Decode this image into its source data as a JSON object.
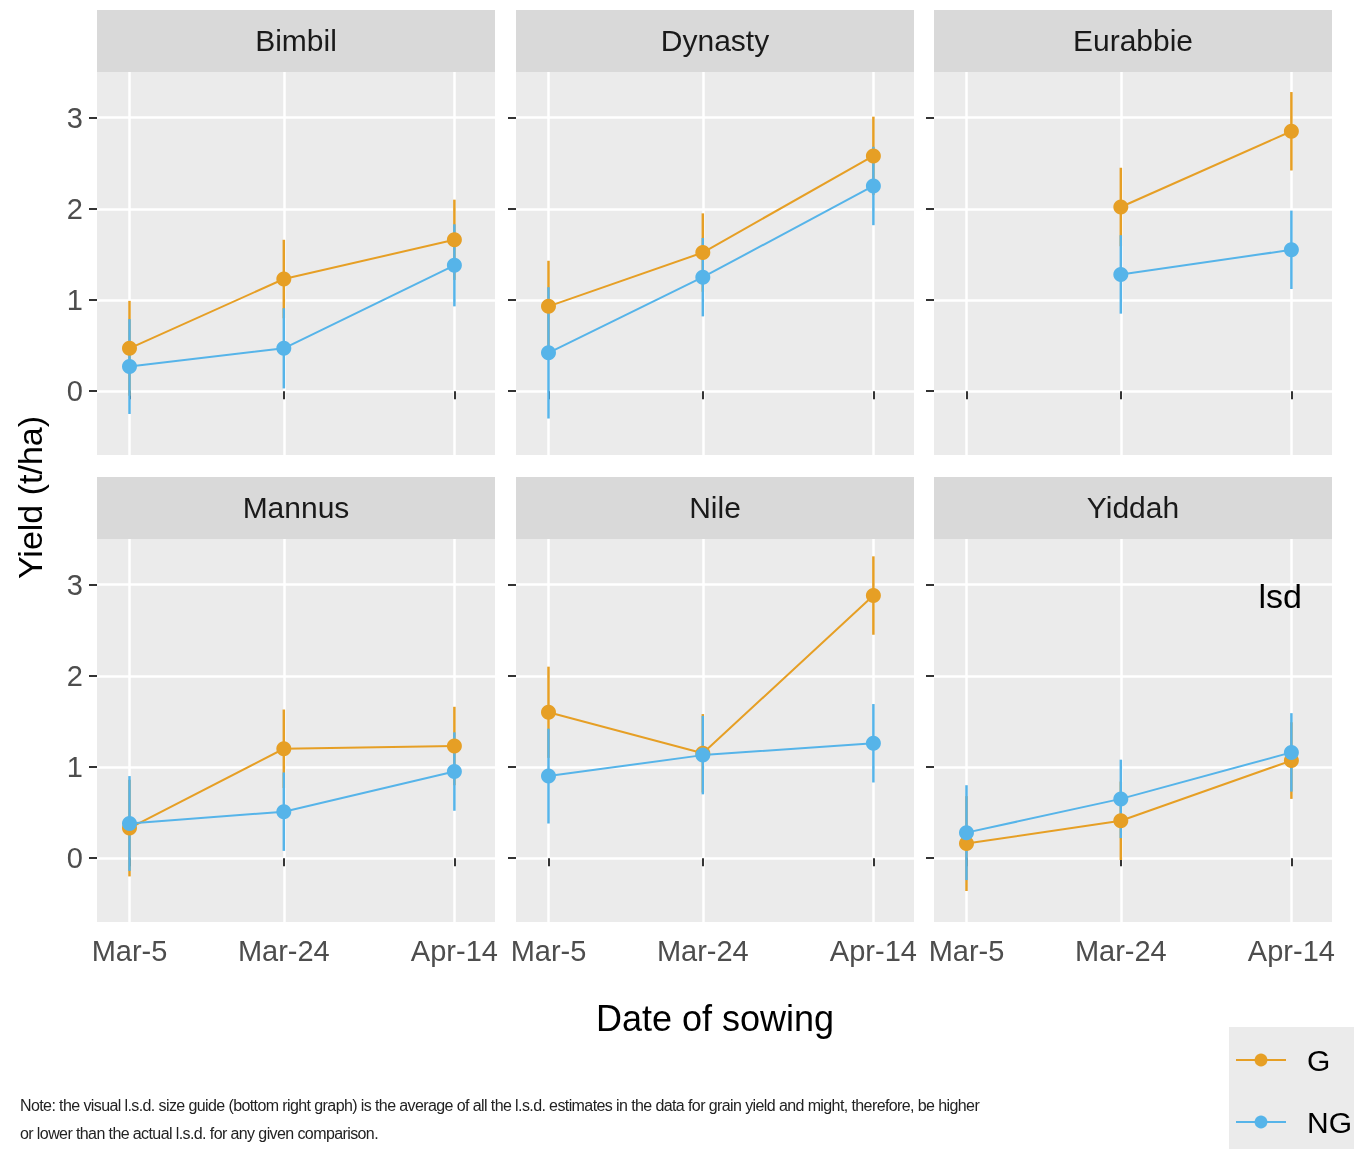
{
  "chart_data": [
    {
      "type": "line",
      "title": "Bimbil",
      "ylabel": "Yield (t/ha)",
      "x": [
        "--03-05",
        "--03-24",
        "--04-14"
      ],
      "xlim": [
        "--03-01",
        "--04-19"
      ],
      "xticks": [
        {
          "value": "--03-05",
          "label": "Mar-5"
        },
        {
          "value": "--03-24",
          "label": "Mar-24"
        },
        {
          "value": "--04-14",
          "label": "Apr-14"
        }
      ],
      "ylim": [
        -0.7,
        3.5
      ],
      "yticks": [
        0,
        1,
        2,
        3
      ],
      "grid": true,
      "marker": "circle",
      "tick_labels": "y",
      "series": [
        {
          "color": "#e69f25",
          "values": [
            0.47,
            1.23,
            1.66
          ],
          "errors": [
            0.52,
            0.43,
            0.44
          ]
        },
        {
          "color": "#56b4e9",
          "values": [
            0.27,
            0.47,
            1.38
          ],
          "errors": [
            0.52,
            0.44,
            0.45
          ]
        }
      ]
    },
    {
      "type": "line",
      "title": "Dynasty",
      "x": [
        "--03-05",
        "--03-24",
        "--04-14"
      ],
      "xlim": [
        "--03-01",
        "--04-19"
      ],
      "xticks": [
        {
          "value": "--03-05",
          "label": "Mar-5"
        },
        {
          "value": "--03-24",
          "label": "Mar-24"
        },
        {
          "value": "--04-14",
          "label": "Apr-14"
        }
      ],
      "ylim": [
        -0.7,
        3.5
      ],
      "yticks": [
        0,
        1,
        2,
        3
      ],
      "grid": true,
      "marker": "circle",
      "tick_labels": false,
      "series": [
        {
          "color": "#e69f25",
          "values": [
            0.93,
            1.52,
            2.58
          ],
          "errors": [
            0.5,
            0.43,
            0.43
          ]
        },
        {
          "color": "#56b4e9",
          "values": [
            0.42,
            1.25,
            2.25
          ],
          "errors": [
            0.72,
            0.43,
            0.43
          ]
        }
      ]
    },
    {
      "type": "line",
      "title": "Eurabbie",
      "xlim": [
        "--03-01",
        "--04-19"
      ],
      "xticks": [
        {
          "value": "--03-05",
          "label": "Mar-5"
        },
        {
          "value": "--03-24",
          "label": "Mar-24"
        },
        {
          "value": "--04-14",
          "label": "Apr-14"
        }
      ],
      "ylim": [
        -0.7,
        3.5
      ],
      "yticks": [
        0,
        1,
        2,
        3
      ],
      "grid": true,
      "marker": "circle",
      "tick_labels": false,
      "series": [
        {
          "color": "#e69f25",
          "x": [
            "--03-24",
            "--04-14"
          ],
          "values": [
            2.02,
            2.85
          ],
          "errors": [
            0.43,
            0.43
          ]
        },
        {
          "color": "#56b4e9",
          "x": [
            "--03-24",
            "--04-14"
          ],
          "values": [
            1.28,
            1.55
          ],
          "errors": [
            0.43,
            0.43
          ]
        }
      ]
    },
    {
      "type": "line",
      "title": "Mannus",
      "x": [
        "--03-05",
        "--03-24",
        "--04-14"
      ],
      "xlim": [
        "--03-01",
        "--04-19"
      ],
      "xticks": [
        {
          "value": "--03-05",
          "label": "Mar-5"
        },
        {
          "value": "--03-24",
          "label": "Mar-24"
        },
        {
          "value": "--04-14",
          "label": "Apr-14"
        }
      ],
      "ylim": [
        -0.7,
        3.5
      ],
      "yticks": [
        0,
        1,
        2,
        3
      ],
      "grid": true,
      "marker": "circle",
      "annotations": [
        "Note: the visual l.s.d. size guide (bottom right graph) is the average of all the l.s.d. estimates in the data for grain yield and might, therefore, be higher or lower than the actual l.s.d. for any given comparison."
      ],
      "series": [
        {
          "color": "#e69f25",
          "values": [
            0.33,
            1.2,
            1.23
          ],
          "errors": [
            0.53,
            0.43,
            0.43
          ]
        },
        {
          "color": "#56b4e9",
          "values": [
            0.38,
            0.51,
            0.95
          ],
          "errors": [
            0.52,
            0.43,
            0.43
          ]
        }
      ]
    },
    {
      "type": "line",
      "title": "Nile",
      "xlabel": "Date of sowing",
      "x": [
        "--03-05",
        "--03-24",
        "--04-14"
      ],
      "xlim": [
        "--03-01",
        "--04-19"
      ],
      "xticks": [
        {
          "value": "--03-05",
          "label": "Mar-5"
        },
        {
          "value": "--03-24",
          "label": "Mar-24"
        },
        {
          "value": "--04-14",
          "label": "Apr-14"
        }
      ],
      "ylim": [
        -0.7,
        3.5
      ],
      "yticks": [
        0,
        1,
        2,
        3
      ],
      "grid": true,
      "marker": "circle",
      "tick_labels": "x",
      "series": [
        {
          "color": "#e69f25",
          "values": [
            1.6,
            1.15,
            2.88
          ],
          "errors": [
            0.5,
            0.43,
            0.43
          ]
        },
        {
          "color": "#56b4e9",
          "values": [
            0.9,
            1.13,
            1.26
          ],
          "errors": [
            0.52,
            0.43,
            0.43
          ]
        }
      ]
    },
    {
      "type": "line",
      "title": "Yiddah",
      "x": [
        "--03-05",
        "--03-24",
        "--04-14"
      ],
      "xlim": [
        "--03-01",
        "--04-19"
      ],
      "xticks": [
        {
          "value": "--03-05",
          "label": "Mar-5"
        },
        {
          "value": "--03-24",
          "label": "Mar-24"
        },
        {
          "value": "--04-14",
          "label": "Apr-14"
        }
      ],
      "ylim": [
        -0.7,
        3.5
      ],
      "yticks": [
        0,
        1,
        2,
        3
      ],
      "grid": true,
      "marker": "circle",
      "tick_labels": "x",
      "legend": "bottom right",
      "annotations": [
        "lsd"
      ],
      "series": [
        {
          "name": "G",
          "color": "#e69f25",
          "values": [
            0.16,
            0.41,
            1.07
          ],
          "errors": [
            0.52,
            0.43,
            0.42
          ]
        },
        {
          "name": "NG",
          "color": "#56b4e9",
          "values": [
            0.28,
            0.65,
            1.16
          ],
          "errors": [
            0.52,
            0.43,
            0.43
          ]
        }
      ]
    }
  ]
}
